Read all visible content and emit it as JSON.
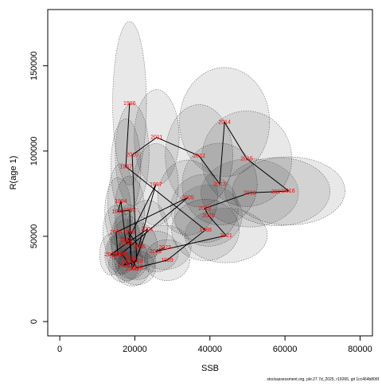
{
  "chart_data": {
    "type": "scatter",
    "x_label": "SSB",
    "y_label": "R(age 1)",
    "footer": "stockassessment.org, ple.27.7d_2025, r19265, git 1cc464b806f",
    "labels": [
      "1986",
      "1987",
      "1988",
      "1989",
      "1990",
      "1991",
      "1992",
      "1993",
      "1994",
      "1995",
      "1996",
      "1997",
      "1998",
      "1999",
      "2000",
      "2001",
      "2002",
      "2003",
      "2004",
      "2005",
      "2006",
      "2007",
      "2008",
      "2009",
      "2010",
      "2011",
      "2012",
      "2013",
      "2014",
      "2015",
      "2016",
      "2017",
      "2018",
      "2019",
      "2020",
      "2021",
      "2022",
      "2023"
    ],
    "x": [
      18600,
      17600,
      38800,
      28600,
      20500,
      19000,
      18600,
      15500,
      16300,
      17500,
      17800,
      25600,
      21000,
      18400,
      19300,
      23300,
      13600,
      15500,
      15000,
      34100,
      16500,
      18000,
      17000,
      20500,
      19300,
      25800,
      37100,
      42600,
      43900,
      49800,
      61000,
      58000,
      50600,
      38600,
      39600,
      44300,
      25600,
      28000
    ],
    "values": [
      128000,
      90900,
      53700,
      36000,
      31500,
      37000,
      65400,
      64500,
      70600,
      48000,
      46000,
      80400,
      44000,
      52300,
      30800,
      54200,
      39300,
      39000,
      52300,
      72700,
      40000,
      35000,
      33000,
      35500,
      97700,
      108000,
      97200,
      80600,
      117000,
      95500,
      76600,
      76200,
      75500,
      66400,
      62200,
      50500,
      41100,
      43500
    ],
    "x_err": [
      4500,
      4000,
      9000,
      6000,
      5000,
      4500,
      4000,
      3500,
      3500,
      4000,
      4000,
      6000,
      5000,
      4000,
      4500,
      5500,
      3000,
      3500,
      3500,
      8000,
      4000,
      4000,
      4000,
      5000,
      4500,
      6000,
      9000,
      10000,
      12000,
      12000,
      15000,
      14000,
      13000,
      9000,
      9000,
      11000,
      6000,
      7000
    ],
    "y_err": [
      48000,
      28000,
      18000,
      12000,
      10000,
      12000,
      20000,
      20000,
      22000,
      15000,
      14000,
      24000,
      14000,
      16000,
      10000,
      17000,
      12000,
      12000,
      16000,
      22000,
      12000,
      11000,
      10000,
      11000,
      30000,
      28000,
      30000,
      24000,
      32000,
      28000,
      20000,
      20000,
      20000,
      20000,
      18000,
      16000,
      12000,
      13000
    ],
    "color": "#ff0000",
    "xlim": [
      -3200,
      83300
    ],
    "ylim": [
      -8400,
      183000
    ],
    "xticks": [
      0,
      20000,
      40000,
      60000,
      80000
    ],
    "yticks": [
      0,
      50000,
      100000,
      150000
    ]
  }
}
